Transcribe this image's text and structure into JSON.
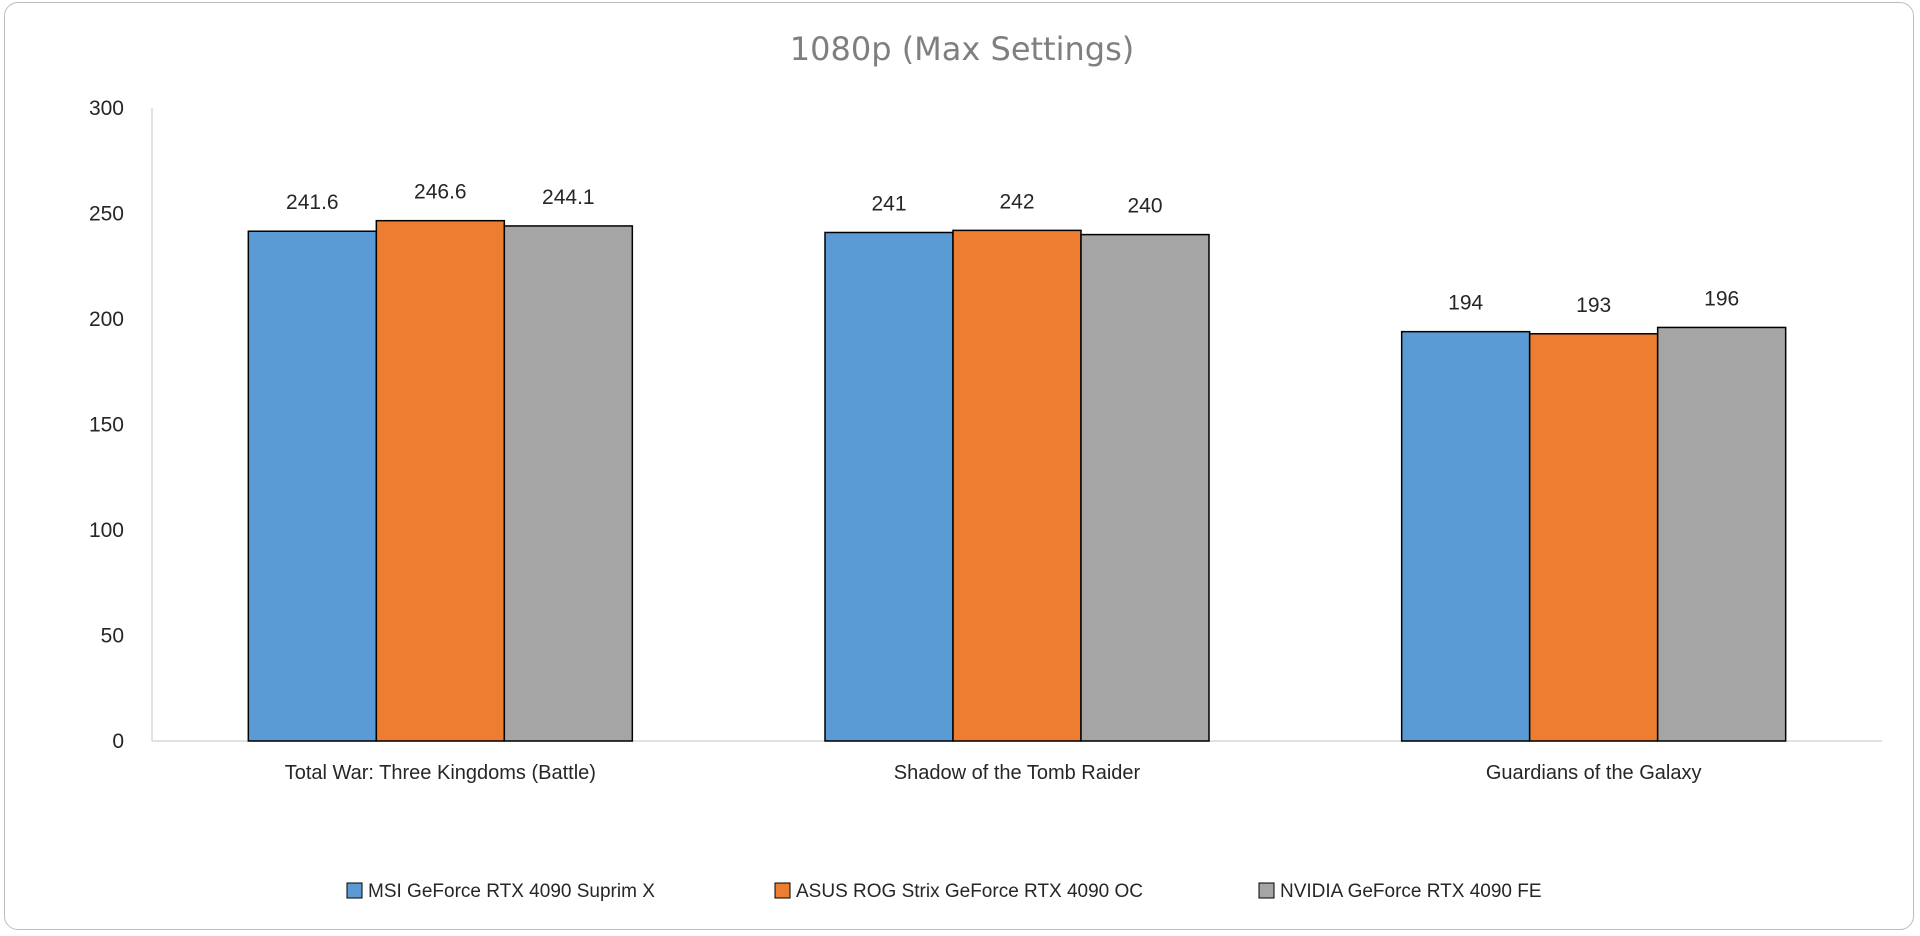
{
  "chart_data": {
    "type": "bar",
    "title": "1080p (Max Settings)",
    "categories": [
      "Total War: Three Kingdoms (Battle)",
      "Shadow of the Tomb Raider",
      "Guardians of the Galaxy"
    ],
    "series": [
      {
        "name": "MSI GeForce RTX 4090 Suprim X",
        "color": "#5b9bd5",
        "values": [
          241.6,
          241,
          194
        ]
      },
      {
        "name": "ASUS ROG Strix GeForce RTX 4090 OC",
        "color": "#ed7d31",
        "values": [
          246.6,
          242,
          193
        ]
      },
      {
        "name": "NVIDIA GeForce RTX 4090 FE",
        "color": "#a5a5a5",
        "values": [
          244.1,
          240,
          196
        ]
      }
    ],
    "ylim": [
      0,
      300
    ],
    "yticks": [
      0,
      50,
      100,
      150,
      200,
      250,
      300
    ],
    "xlabel": "",
    "ylabel": "",
    "grid": false,
    "legend_position": "bottom"
  }
}
